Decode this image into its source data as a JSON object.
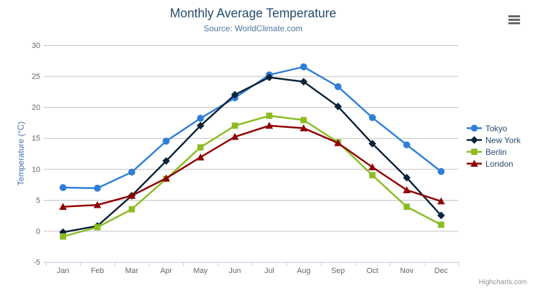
{
  "chart_data": {
    "type": "line",
    "title": "Monthly Average Temperature",
    "subtitle": "Source: WorldClimate.com",
    "xlabel": "",
    "ylabel": "Temperature (°C)",
    "ylim": [
      -5,
      30
    ],
    "yticks": [
      -5,
      0,
      5,
      10,
      15,
      20,
      25,
      30
    ],
    "grid": true,
    "legend_position": "right",
    "categories": [
      "Jan",
      "Feb",
      "Mar",
      "Apr",
      "May",
      "Jun",
      "Jul",
      "Aug",
      "Sep",
      "Oct",
      "Nov",
      "Dec"
    ],
    "series": [
      {
        "name": "Tokyo",
        "color": "#2f7ed8",
        "marker": "circle",
        "values": [
          7.0,
          6.9,
          9.5,
          14.5,
          18.2,
          21.5,
          25.2,
          26.5,
          23.3,
          18.3,
          13.9,
          9.6
        ]
      },
      {
        "name": "New York",
        "color": "#0d233a",
        "marker": "diamond",
        "values": [
          -0.2,
          0.8,
          5.7,
          11.3,
          17.0,
          22.0,
          24.8,
          24.1,
          20.1,
          14.1,
          8.6,
          2.5
        ]
      },
      {
        "name": "Berlin",
        "color": "#8bbc21",
        "marker": "square",
        "values": [
          -0.9,
          0.6,
          3.5,
          8.4,
          13.5,
          17.0,
          18.6,
          17.9,
          14.3,
          9.0,
          3.9,
          1.0
        ]
      },
      {
        "name": "London",
        "color": "#910000",
        "marker": "triangle",
        "values": [
          3.9,
          4.2,
          5.7,
          8.5,
          11.9,
          15.2,
          17.0,
          16.6,
          14.2,
          10.3,
          6.6,
          4.8
        ]
      }
    ]
  },
  "credits": "Highcharts.com",
  "export_menu": {
    "icon": "hamburger-icon"
  },
  "colors": {
    "background": "#ffffff",
    "grid": "#c0c0c0",
    "axis_line": "#c0d0e0",
    "title": "#274b6d",
    "subtitle": "#4d759e",
    "axis_title": "#4572a7",
    "axis_label": "#666666",
    "legend_text": "#274b6d",
    "credits": "#909090",
    "menu_icon": "#666666"
  }
}
